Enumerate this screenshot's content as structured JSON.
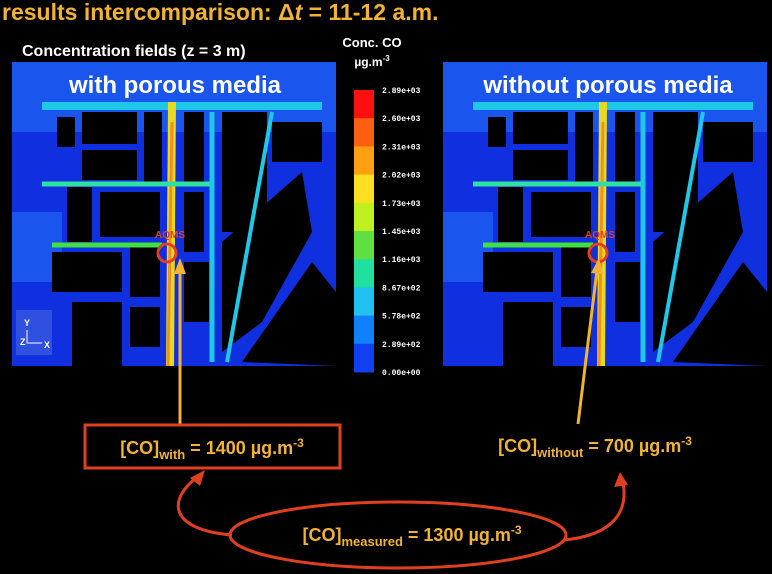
{
  "title": {
    "prefix": "results intercomparison: Δ",
    "variable": "t",
    "suffix": " = 11-12 a.m."
  },
  "subtitle": "Concentration fields (z = 3 m)",
  "colorbar": {
    "title": "Conc. CO",
    "unit": "µg.m",
    "unit_exponent": "-3",
    "labels": [
      "2.89e+03",
      "2.60e+03",
      "2.31e+03",
      "2.02e+03",
      "1.73e+03",
      "1.45e+03",
      "1.16e+03",
      "8.67e+02",
      "5.78e+02",
      "2.89e+02",
      "0.00e+00"
    ]
  },
  "panels": [
    {
      "title": "with porous media",
      "station": "AQMS"
    },
    {
      "title": "without porous media",
      "station": "AQMS"
    }
  ],
  "axes_triad": {
    "y": "Y",
    "z": "Z",
    "x": "X"
  },
  "results": [
    {
      "symbol": "[CO]",
      "subscript": "with",
      "value": " = 1400 µg.m",
      "exponent": "-3"
    },
    {
      "symbol": "[CO]",
      "subscript": "without",
      "value": " = 700 µg.m",
      "exponent": "-3"
    },
    {
      "symbol": "[CO]",
      "subscript": "measured",
      "value": " = 1300 µg.m",
      "exponent": "-3"
    }
  ]
}
